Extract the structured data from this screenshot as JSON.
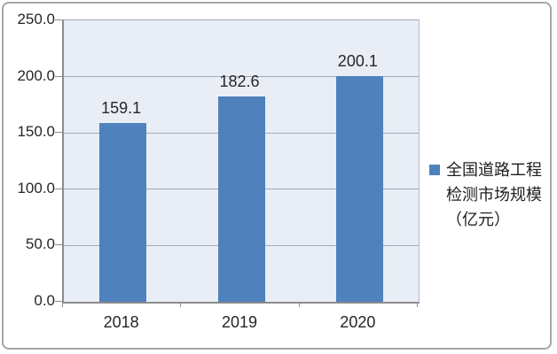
{
  "chart_data": {
    "type": "bar",
    "categories": [
      "2018",
      "2019",
      "2020"
    ],
    "values": [
      159.1,
      182.6,
      200.1
    ],
    "value_labels": [
      "159.1",
      "182.6",
      "200.1"
    ],
    "title": "",
    "xlabel": "",
    "ylabel": "",
    "ylim": [
      0,
      250
    ],
    "ytick_step": 50,
    "ytick_labels": [
      "0.0",
      "50.0",
      "100.0",
      "150.0",
      "200.0",
      "250.0"
    ],
    "grid": true,
    "legend_position": "right",
    "legend_label": "全国道路工程检测市场规模（亿元）",
    "legend_lines": [
      "全国道路工程",
      "检测市场规模",
      "（亿元）"
    ],
    "colors": {
      "bar": "#4f81bd",
      "plot_background": "#e9eef6",
      "gridline": "#a3aab6",
      "axis": "#8c8c8c",
      "text": "#262626",
      "frame_border": "#a6a6a6"
    }
  }
}
